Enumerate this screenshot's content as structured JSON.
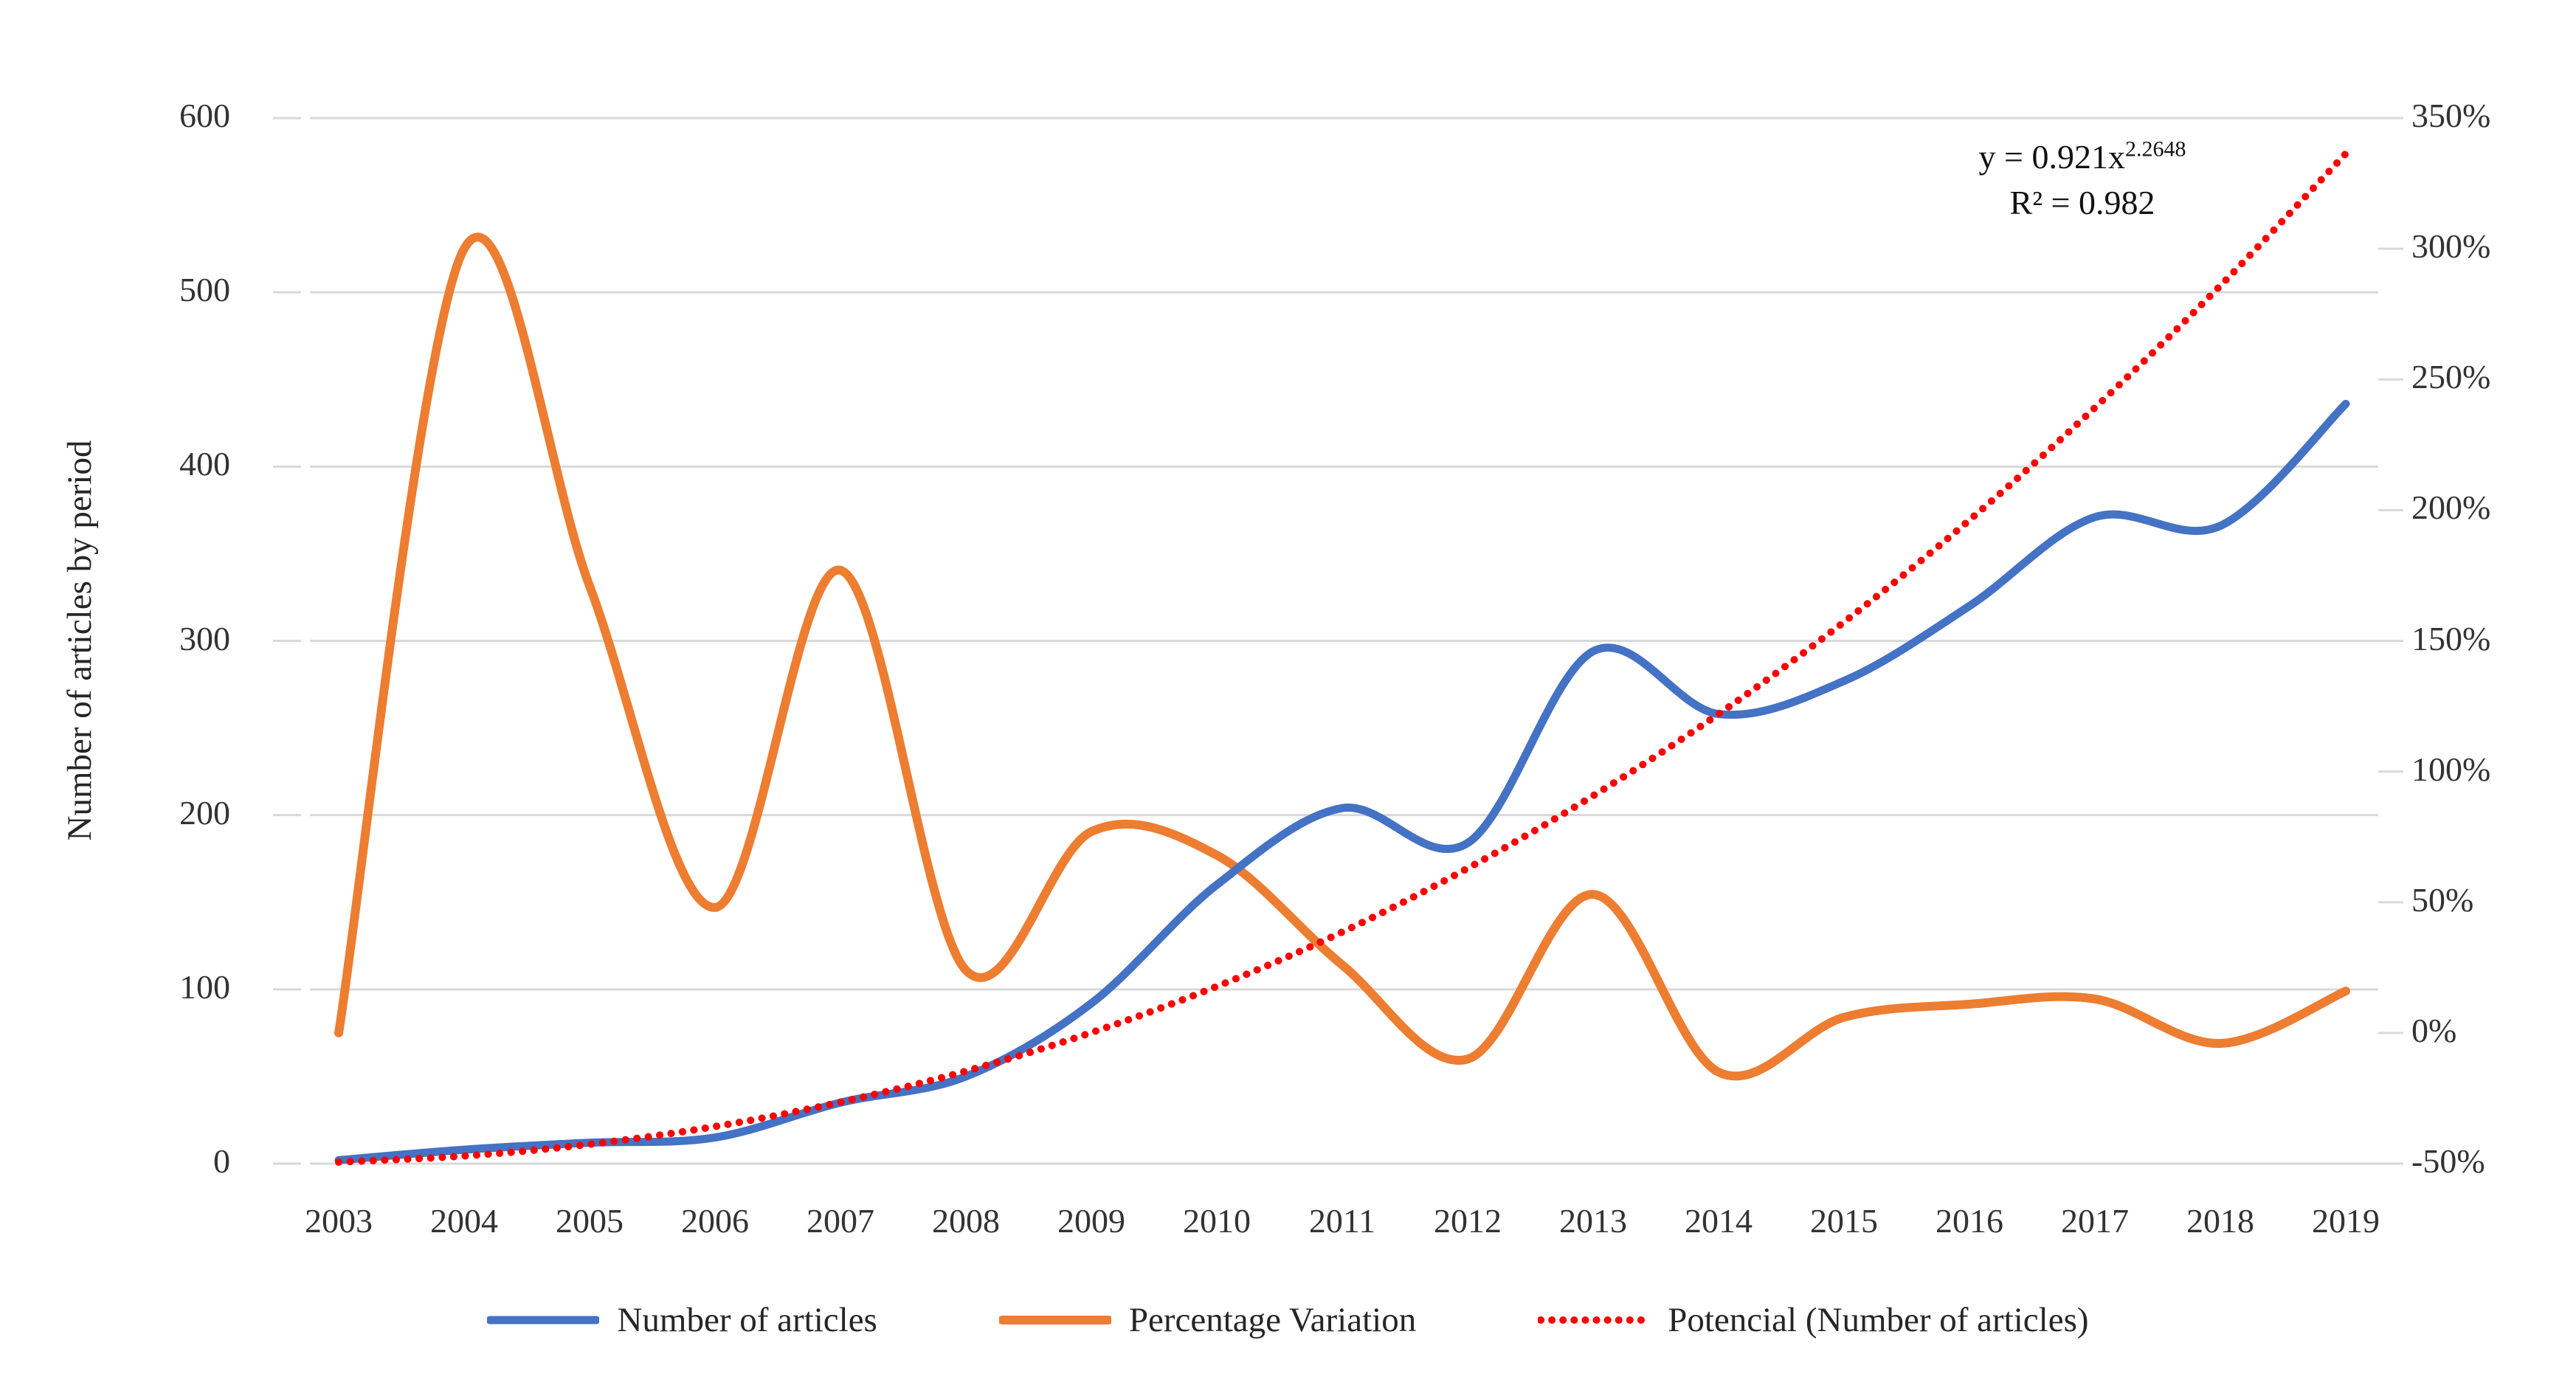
{
  "chart_data": {
    "type": "line",
    "title": "",
    "x": [
      2003,
      2004,
      2005,
      2006,
      2007,
      2008,
      2009,
      2010,
      2011,
      2012,
      2013,
      2014,
      2015,
      2016,
      2017,
      2018,
      2019
    ],
    "series": [
      {
        "name": "Number of articles",
        "axis": "left",
        "color": "#4472C4",
        "style": "solid",
        "values": [
          2,
          8,
          12,
          15,
          35,
          50,
          92,
          160,
          204,
          184,
          294,
          258,
          277,
          320,
          371,
          366,
          436
        ]
      },
      {
        "name": "Percentage Variation",
        "axis": "right",
        "color": "#ED7D31",
        "style": "solid",
        "values_percent": [
          0,
          300,
          171,
          48,
          177,
          24,
          77,
          68,
          26,
          -10,
          53,
          -15,
          6,
          11,
          13,
          -4,
          16
        ]
      },
      {
        "name": "Potencial (Number of articles)",
        "axis": "left",
        "color": "#FF0000",
        "style": "dotted",
        "values": [
          0.9,
          4.4,
          11.1,
          21.3,
          35.3,
          53.1,
          75.2,
          101.7,
          132.9,
          169.5,
          211.1,
          258.0,
          310.8,
          369.3,
          433.8,
          503.8,
          579.6
        ]
      }
    ],
    "left_axis": {
      "label": "Number of articles by period",
      "min": 0,
      "max": 600,
      "ticks": [
        600,
        500,
        400,
        300,
        200,
        100,
        0
      ]
    },
    "right_axis": {
      "min": -50,
      "max": 350,
      "ticks": [
        "350%",
        "300%",
        "250%",
        "200%",
        "150%",
        "100%",
        "50%",
        "0%",
        "-50%"
      ]
    },
    "x_axis": {
      "ticks": [
        "2003",
        "2004",
        "2005",
        "2006",
        "2007",
        "2008",
        "2009",
        "2010",
        "2011",
        "2012",
        "2013",
        "2014",
        "2015",
        "2016",
        "2017",
        "2018",
        "2019"
      ]
    },
    "annotation": {
      "equation_base": "y = 0.921x",
      "equation_exp": "2.2648",
      "r2": "R² = 0.982"
    },
    "grid": {
      "color": "#D9D9D9",
      "on": true
    },
    "legend_position": "bottom"
  }
}
